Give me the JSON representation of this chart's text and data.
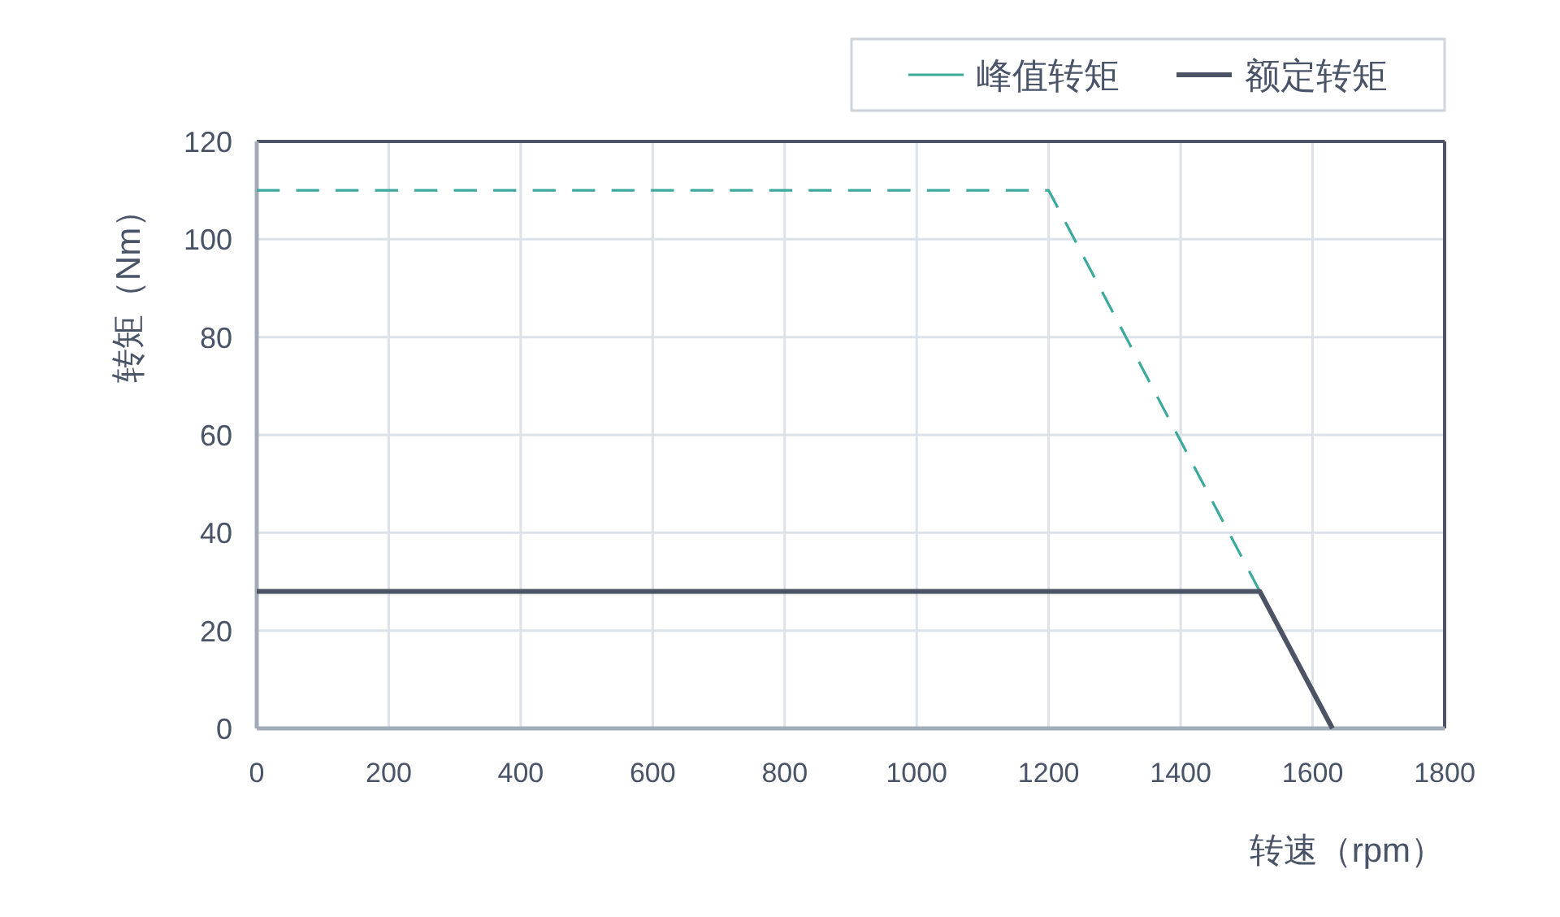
{
  "chart_data": {
    "type": "line",
    "xlabel": "转速（rpm）",
    "ylabel": "转矩（Nm）",
    "xlim": [
      0,
      1800
    ],
    "xticks": [
      0,
      200,
      400,
      600,
      800,
      1000,
      1200,
      1400,
      1600,
      1800
    ],
    "ylim": [
      0,
      120
    ],
    "yticks": [
      0,
      20,
      40,
      60,
      80,
      100,
      120
    ],
    "grid": true,
    "legend": "top right",
    "series": [
      {
        "name": "峰值转矩",
        "color": "#3ba99c",
        "line_style": "dashed",
        "x": [
          0,
          1200,
          1520
        ],
        "values": [
          110,
          110,
          28
        ]
      },
      {
        "name": "额定转矩",
        "color": "#4b5365",
        "line_style": "solid",
        "x": [
          0,
          1520,
          1630
        ],
        "values": [
          28,
          28,
          0
        ]
      }
    ]
  }
}
